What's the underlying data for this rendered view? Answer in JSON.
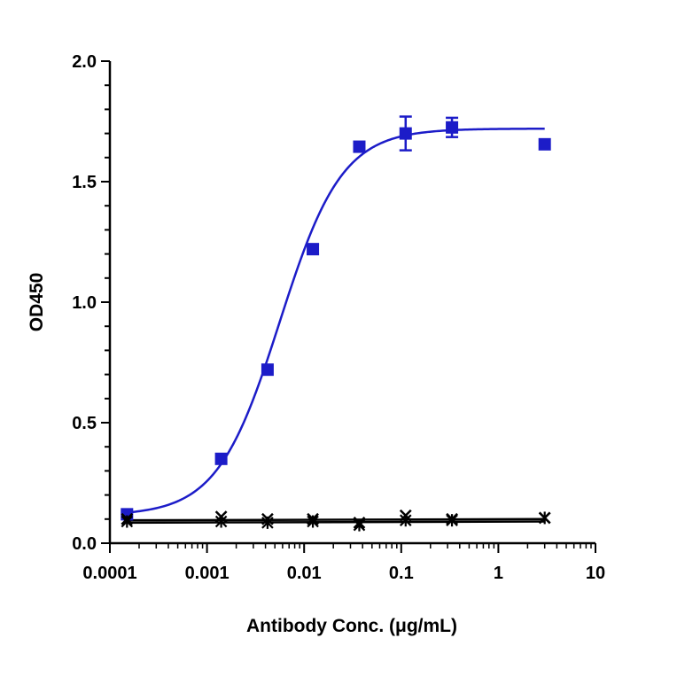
{
  "chart_data": {
    "type": "scatter",
    "xlabel": "Antibody Conc. (μg/mL)",
    "ylabel": "OD450",
    "xscale": "log",
    "xlim": [
      0.0001,
      10
    ],
    "ylim": [
      0,
      2.0
    ],
    "x_ticks": [
      "0.0001",
      "0.001",
      "0.01",
      "0.1",
      "1",
      "10"
    ],
    "y_ticks": [
      "0.0",
      "0.5",
      "1.0",
      "1.5",
      "2.0"
    ],
    "grid": false,
    "legend": "none",
    "series": [
      {
        "color": "#1c1cc8",
        "marker": "square",
        "fit": "4PL sigmoid",
        "points": [
          {
            "x": 0.00015,
            "y": 0.12
          },
          {
            "x": 0.0014,
            "y": 0.35
          },
          {
            "x": 0.0042,
            "y": 0.72
          },
          {
            "x": 0.0123,
            "y": 1.22,
            "err": 0.02
          },
          {
            "x": 0.037,
            "y": 1.645
          },
          {
            "x": 0.111,
            "y": 1.7,
            "err": 0.07
          },
          {
            "x": 0.333,
            "y": 1.725,
            "err": 0.04
          },
          {
            "x": 3.0,
            "y": 1.655
          }
        ],
        "curve": {
          "bottom": 0.115,
          "top": 1.72,
          "ec50": 0.0056,
          "hill": 1.35
        }
      },
      {
        "color": "#000000",
        "marker": "x",
        "points": [
          {
            "x": 0.00015,
            "y": 0.1
          },
          {
            "x": 0.0014,
            "y": 0.11
          },
          {
            "x": 0.0042,
            "y": 0.1
          },
          {
            "x": 0.0123,
            "y": 0.1
          },
          {
            "x": 0.037,
            "y": 0.085
          },
          {
            "x": 0.111,
            "y": 0.115
          },
          {
            "x": 0.333,
            "y": 0.1
          },
          {
            "x": 3.0,
            "y": 0.105
          }
        ],
        "line": [
          0.095,
          0.1
        ]
      },
      {
        "color": "#000000",
        "marker": "asterisk",
        "points": [
          {
            "x": 0.00015,
            "y": 0.09
          },
          {
            "x": 0.0014,
            "y": 0.09
          },
          {
            "x": 0.0042,
            "y": 0.085
          },
          {
            "x": 0.0123,
            "y": 0.09
          },
          {
            "x": 0.037,
            "y": 0.075
          },
          {
            "x": 0.111,
            "y": 0.095
          },
          {
            "x": 0.333,
            "y": 0.095
          },
          {
            "x": 3.0,
            "y": 0.105
          }
        ],
        "line": [
          0.085,
          0.09
        ]
      }
    ]
  }
}
